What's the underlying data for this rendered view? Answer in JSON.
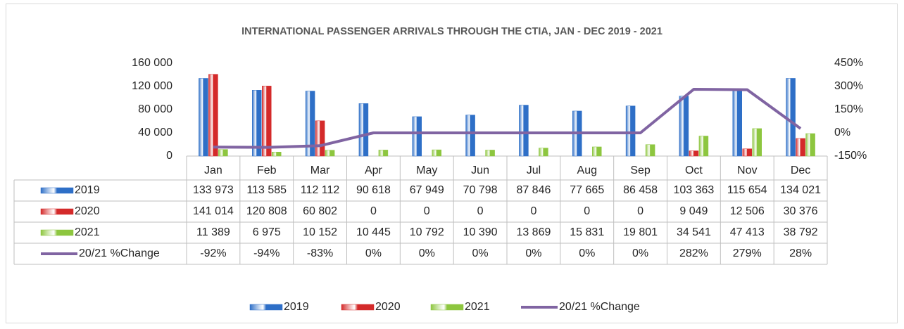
{
  "chart_data": {
    "type": "bar",
    "title": "INTERNATIONAL PASSENGER ARRIVALS THROUGH THE CTIA, JAN - DEC 2019 - 2021",
    "categories": [
      "Jan",
      "Feb",
      "Mar",
      "Apr",
      "May",
      "Jun",
      "Jul",
      "Aug",
      "Sep",
      "Oct",
      "Nov",
      "Dec"
    ],
    "series": [
      {
        "name": "2019",
        "color": "#2e6fc7",
        "type": "bar",
        "values": [
          133973,
          113585,
          112112,
          90618,
          67949,
          70798,
          87846,
          77665,
          86458,
          103363,
          115654,
          134021
        ],
        "value_labels": [
          "133 973",
          "113 585",
          "112 112",
          "90 618",
          "67 949",
          "70 798",
          "87 846",
          "77 665",
          "86 458",
          "103 363",
          "115 654",
          "134 021"
        ]
      },
      {
        "name": "2020",
        "color": "#d42a2a",
        "type": "bar",
        "values": [
          141014,
          120808,
          60802,
          0,
          0,
          0,
          0,
          0,
          0,
          9049,
          12506,
          30376
        ],
        "value_labels": [
          "141 014",
          "120 808",
          "60 802",
          "0",
          "0",
          "0",
          "0",
          "0",
          "0",
          "9 049",
          "12 506",
          "30 376"
        ]
      },
      {
        "name": "2021",
        "color": "#8dc63f",
        "type": "bar",
        "values": [
          11389,
          6975,
          10152,
          10445,
          10792,
          10390,
          13869,
          15831,
          19801,
          34541,
          47413,
          38792
        ],
        "value_labels": [
          "11 389",
          "6 975",
          "10 152",
          "10 445",
          "10 792",
          "10 390",
          "13 869",
          "15 831",
          "19 801",
          "34 541",
          "47 413",
          "38 792"
        ]
      },
      {
        "name": "20/21 %Change",
        "color": "#8064a2",
        "type": "line",
        "axis": "y2",
        "values": [
          -92,
          -94,
          -83,
          0,
          0,
          0,
          0,
          0,
          0,
          282,
          279,
          28
        ],
        "value_labels": [
          "-92%",
          "-94%",
          "-83%",
          "0%",
          "0%",
          "0%",
          "0%",
          "0%",
          "0%",
          "282%",
          "279%",
          "28%"
        ]
      }
    ],
    "ylim": [
      0,
      160000
    ],
    "yticks": [
      0,
      {
        "value": 40000,
        "label": "40 000"
      },
      {
        "value": 80000,
        "label": "80 000"
      },
      {
        "value": 120000,
        "label": "120 000"
      },
      {
        "value": 160000,
        "label": "160 000"
      }
    ],
    "y2lim": [
      -150,
      450
    ],
    "y2ticks": [
      {
        "value": -150,
        "label": "-150%"
      },
      {
        "value": 0,
        "label": "0%"
      },
      {
        "value": 150,
        "label": "150%"
      },
      {
        "value": 300,
        "label": "300%"
      },
      {
        "value": 450,
        "label": "450%"
      }
    ]
  }
}
